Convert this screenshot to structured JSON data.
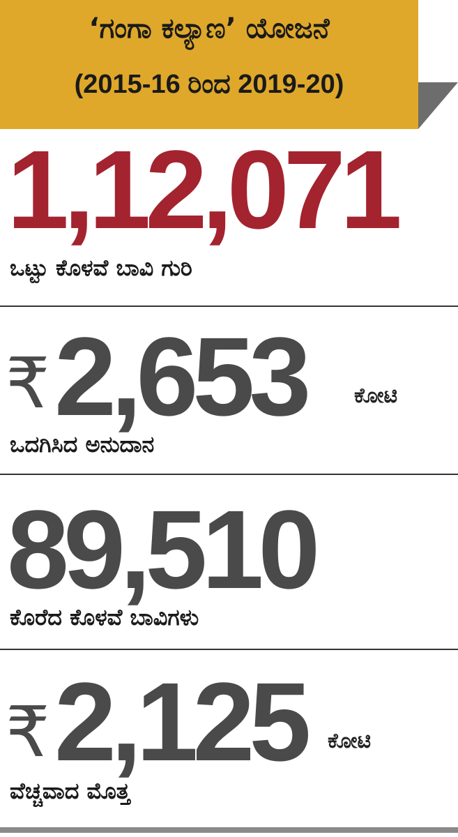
{
  "header": {
    "title": "‘ಗಂಗಾ ಕಲ್ಯಾಣ’ ಯೋಜನೆ",
    "subtitle": "(2015-16 ರಿಂದ 2019-20)"
  },
  "stats": [
    {
      "value": "1,12,071",
      "label": "ಒಟ್ಟು ಕೊಳವೆ ಬಾವಿ ಗುರಿ"
    },
    {
      "currency": "₹",
      "value": "2,653",
      "unit": "ಕೋಟಿ",
      "label": "ಒದಗಿಸಿದ ಅನುದಾನ"
    },
    {
      "value": "89,510",
      "label": "ಕೊರೆದ ಕೊಳವೆ ಬಾವಿಗಳು"
    },
    {
      "currency": "₹",
      "value": "2,125",
      "unit": "ಕೋಟಿ",
      "label": "ವೆಚ್ಚವಾದ ಮೊತ್ತ"
    }
  ]
}
